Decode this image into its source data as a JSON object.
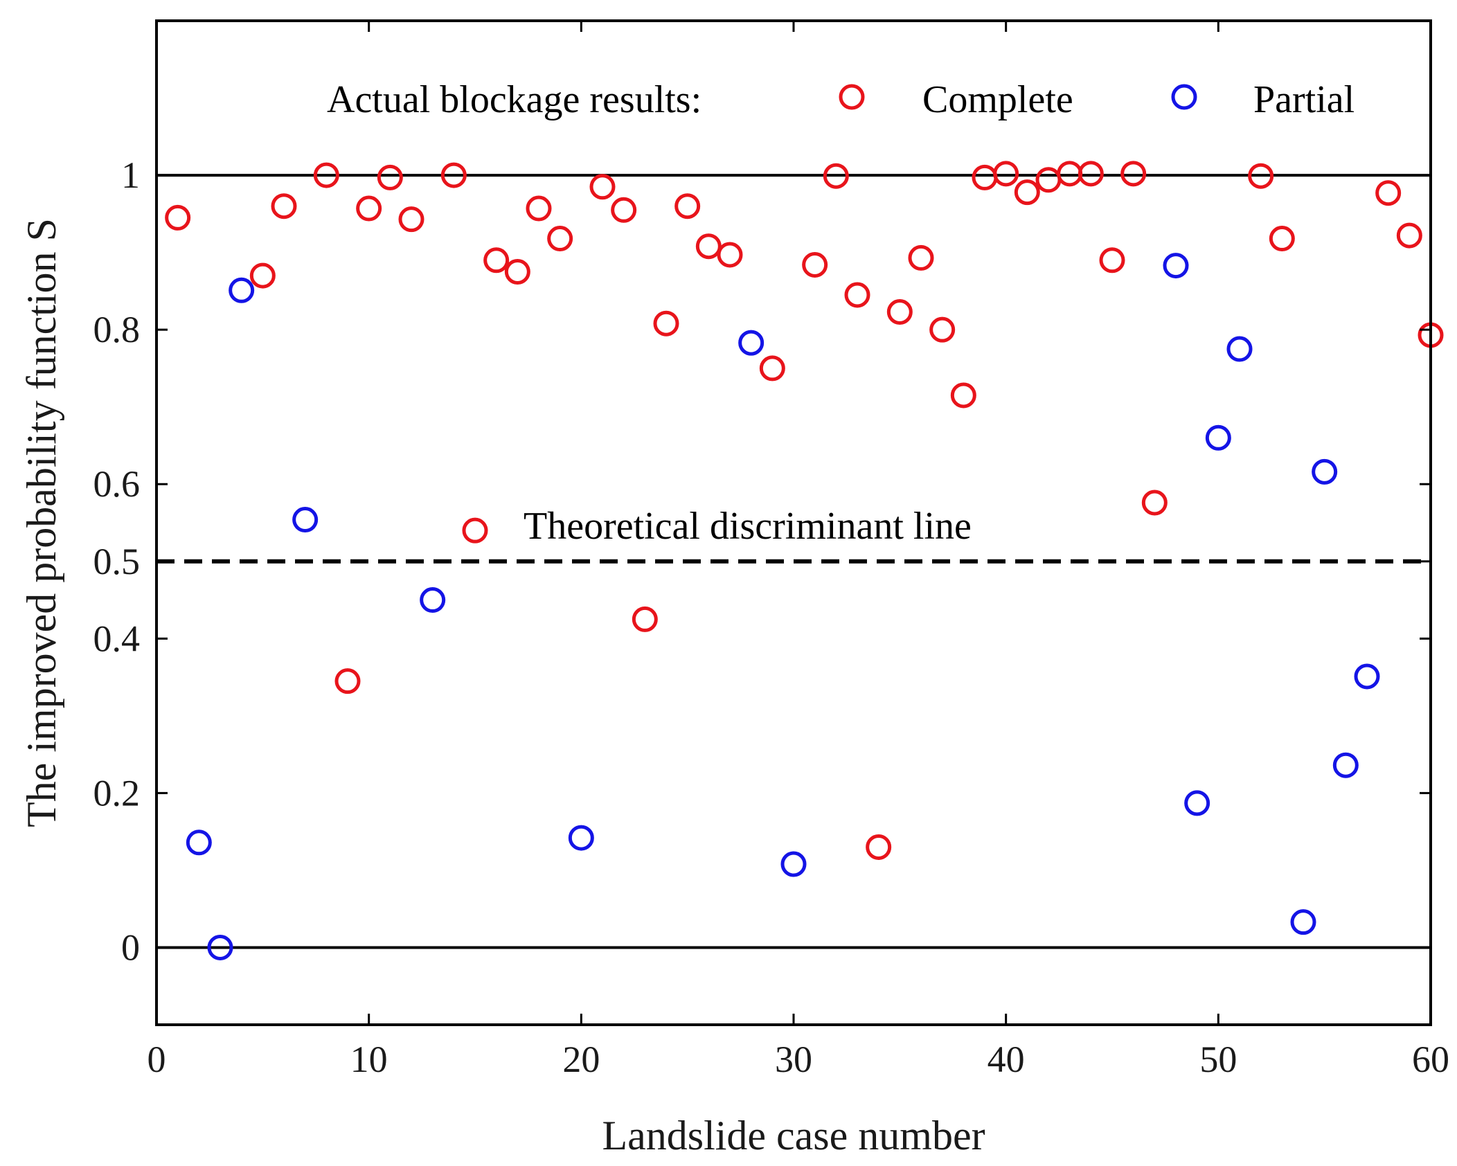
{
  "chart_data": {
    "type": "scatter",
    "xlabel": "Landslide case number",
    "ylabel": "The improved probability function S",
    "xlim": [
      0,
      60
    ],
    "ylim": [
      -0.1,
      1.2
    ],
    "xticks": [
      0,
      10,
      20,
      30,
      40,
      50,
      60
    ],
    "yticks": [
      0,
      0.2,
      0.4,
      0.5,
      0.6,
      0.8,
      1
    ],
    "xtick_labels": [
      "0",
      "10",
      "20",
      "30",
      "40",
      "50",
      "60"
    ],
    "ytick_labels": [
      "0",
      "0.2",
      "0.4",
      "0.5",
      "0.6",
      "0.8",
      "1"
    ],
    "reference_lines": [
      {
        "name": "upper",
        "y": 1,
        "style": "solid"
      },
      {
        "name": "lower",
        "y": 0,
        "style": "solid"
      },
      {
        "name": "discriminant",
        "y": 0.5,
        "style": "dashed"
      }
    ],
    "annotation": "Theoretical discriminant line",
    "legend_title": "Actual blockage results:",
    "series": [
      {
        "name": "Complete",
        "color": "#e8141b",
        "points": [
          [
            1,
            0.945
          ],
          [
            5,
            0.87
          ],
          [
            6,
            0.96
          ],
          [
            8,
            1.0
          ],
          [
            9,
            0.345
          ],
          [
            10,
            0.957
          ],
          [
            11,
            0.997
          ],
          [
            12,
            0.943
          ],
          [
            14,
            1.0
          ],
          [
            15,
            0.54
          ],
          [
            16,
            0.89
          ],
          [
            17,
            0.875
          ],
          [
            18,
            0.957
          ],
          [
            19,
            0.918
          ],
          [
            21,
            0.985
          ],
          [
            22,
            0.955
          ],
          [
            23,
            0.425
          ],
          [
            24,
            0.808
          ],
          [
            25,
            0.96
          ],
          [
            26,
            0.908
          ],
          [
            27,
            0.897
          ],
          [
            29,
            0.75
          ],
          [
            31,
            0.884
          ],
          [
            32,
            0.999
          ],
          [
            33,
            0.845
          ],
          [
            34,
            0.13
          ],
          [
            35,
            0.823
          ],
          [
            36,
            0.893
          ],
          [
            37,
            0.8
          ],
          [
            38,
            0.715
          ],
          [
            39,
            0.997
          ],
          [
            40,
            1.002
          ],
          [
            41,
            0.978
          ],
          [
            42,
            0.994
          ],
          [
            43,
            1.002
          ],
          [
            44,
            1.002
          ],
          [
            45,
            0.89
          ],
          [
            46,
            1.002
          ],
          [
            47,
            0.576
          ],
          [
            52,
            0.999
          ],
          [
            53,
            0.918
          ],
          [
            58,
            0.977
          ],
          [
            59,
            0.922
          ],
          [
            60,
            0.793
          ]
        ]
      },
      {
        "name": "Partial",
        "color": "#1414e6",
        "points": [
          [
            2,
            0.136
          ],
          [
            3,
            0.0
          ],
          [
            4,
            0.851
          ],
          [
            7,
            0.554
          ],
          [
            13,
            0.45
          ],
          [
            20,
            0.142
          ],
          [
            28,
            0.783
          ],
          [
            30,
            0.108
          ],
          [
            48,
            0.883
          ],
          [
            49,
            0.187
          ],
          [
            50,
            0.66
          ],
          [
            51,
            0.775
          ],
          [
            54,
            0.033
          ],
          [
            55,
            0.616
          ],
          [
            56,
            0.236
          ],
          [
            57,
            0.351
          ]
        ]
      }
    ]
  }
}
